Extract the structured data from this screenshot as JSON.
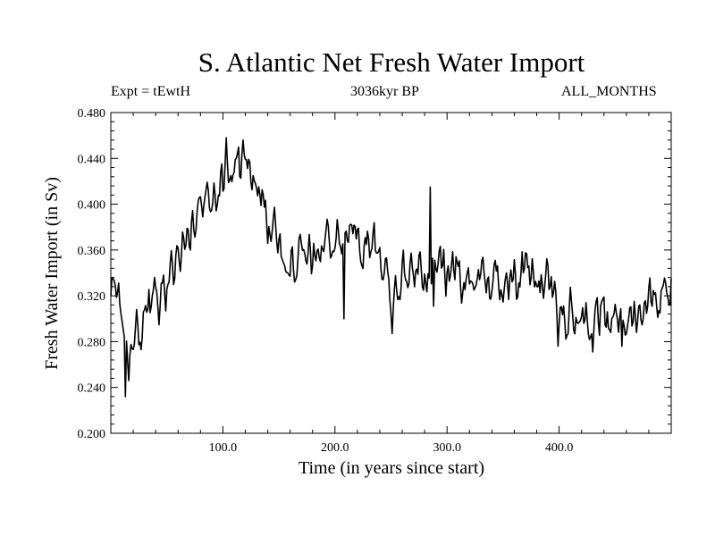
{
  "chart_data": {
    "type": "line",
    "title": "S. Atlantic Net Fresh Water Import",
    "left_label": "Expt = tEwtH",
    "center_label": "3036kyr BP",
    "right_label": "ALL_MONTHS",
    "xlabel": "Time (in years since start)",
    "ylabel": "Fresh Water Import (in Sv)",
    "xlim": [
      0,
      500
    ],
    "ylim": [
      0.2,
      0.48
    ],
    "x_ticks": [
      "100.0",
      "200.0",
      "300.0",
      "400.0"
    ],
    "y_ticks": [
      "0.200",
      "0.240",
      "0.280",
      "0.320",
      "0.360",
      "0.400",
      "0.440",
      "0.480"
    ],
    "series": [
      {
        "name": "Net Fresh Water Import",
        "anchors": [
          [
            0,
            0.32
          ],
          [
            5,
            0.33
          ],
          [
            10,
            0.28
          ],
          [
            15,
            0.262
          ],
          [
            20,
            0.285
          ],
          [
            30,
            0.3
          ],
          [
            40,
            0.312
          ],
          [
            50,
            0.33
          ],
          [
            60,
            0.355
          ],
          [
            70,
            0.375
          ],
          [
            80,
            0.395
          ],
          [
            90,
            0.415
          ],
          [
            100,
            0.425
          ],
          [
            110,
            0.432
          ],
          [
            120,
            0.43
          ],
          [
            130,
            0.425
          ],
          [
            140,
            0.385
          ],
          [
            150,
            0.365
          ],
          [
            160,
            0.355
          ],
          [
            170,
            0.35
          ],
          [
            180,
            0.355
          ],
          [
            190,
            0.365
          ],
          [
            200,
            0.37
          ],
          [
            210,
            0.375
          ],
          [
            220,
            0.37
          ],
          [
            230,
            0.365
          ],
          [
            240,
            0.36
          ],
          [
            250,
            0.325
          ],
          [
            260,
            0.335
          ],
          [
            270,
            0.345
          ],
          [
            280,
            0.34
          ],
          [
            290,
            0.345
          ],
          [
            300,
            0.342
          ],
          [
            310,
            0.338
          ],
          [
            320,
            0.335
          ],
          [
            330,
            0.338
          ],
          [
            340,
            0.33
          ],
          [
            350,
            0.335
          ],
          [
            360,
            0.34
          ],
          [
            370,
            0.335
          ],
          [
            380,
            0.33
          ],
          [
            390,
            0.335
          ],
          [
            400,
            0.305
          ],
          [
            410,
            0.305
          ],
          [
            420,
            0.3
          ],
          [
            430,
            0.295
          ],
          [
            440,
            0.3
          ],
          [
            450,
            0.295
          ],
          [
            460,
            0.3
          ],
          [
            470,
            0.31
          ],
          [
            480,
            0.32
          ],
          [
            490,
            0.325
          ],
          [
            500,
            0.325
          ]
        ],
        "spikes": [
          [
            13,
            0.232
          ],
          [
            27,
            0.273
          ],
          [
            103,
            0.458
          ],
          [
            118,
            0.456
          ],
          [
            208,
            0.3
          ],
          [
            251,
            0.287
          ],
          [
            285,
            0.415
          ],
          [
            288,
            0.311
          ],
          [
            399,
            0.276
          ],
          [
            430,
            0.271
          ],
          [
            456,
            0.276
          ]
        ],
        "noise_amplitude": 0.026
      }
    ]
  }
}
